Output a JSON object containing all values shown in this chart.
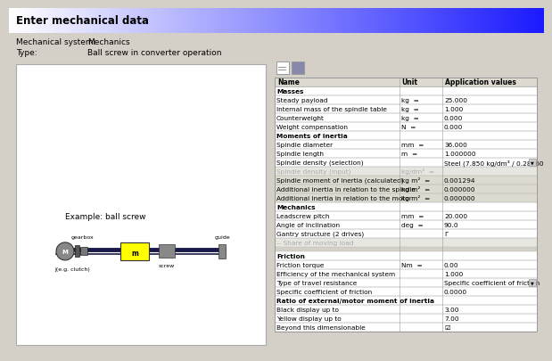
{
  "title": "Enter mechanical data",
  "bg_color": "#d4d0c8",
  "mechanical_system_label": "Mechanical system:",
  "mechanical_system_value": "Mechanics",
  "type_label": "Type:",
  "type_value": "Ball screw in converter operation",
  "diagram_label": "Example: ball screw",
  "table_headers": [
    "Name",
    "Unit",
    "Application values"
  ],
  "rows": [
    {
      "name": "Masses",
      "unit": "",
      "value": "",
      "bold": true,
      "group": true
    },
    {
      "name": "Steady payload",
      "unit": "kg  =",
      "value": "25.000",
      "bold": false
    },
    {
      "name": "Internal mass of the spindle table",
      "unit": "kg  =",
      "value": "1.000",
      "bold": false
    },
    {
      "name": "Counterweight",
      "unit": "kg  =",
      "value": "0.000",
      "bold": false
    },
    {
      "name": "Weight compensation",
      "unit": "N  =",
      "value": "0.000",
      "bold": false
    },
    {
      "name": "Moments of inertia",
      "unit": "",
      "value": "",
      "bold": true,
      "group": true
    },
    {
      "name": "Spindle diameter",
      "unit": "mm  =",
      "value": "36.000",
      "bold": false
    },
    {
      "name": "Spindle length",
      "unit": "m  =",
      "value": "1.000000",
      "bold": false
    },
    {
      "name": "Spindle density (selection)",
      "unit": "",
      "value": "Steel (7.850 kg/dm³ / 0.28360 l...",
      "bold": false,
      "dropdown": true
    },
    {
      "name": "Spindle density (input)",
      "unit": "kg/dm³  =",
      "value": "",
      "bold": false,
      "grayed": true
    },
    {
      "name": "Spindle moment of inertia (calculated)",
      "unit": "kg m²  =",
      "value": "0.001294",
      "bold": false,
      "shaded": true
    },
    {
      "name": "Additional inertia in relation to the spindle",
      "unit": "kg m²  =",
      "value": "0.000000",
      "bold": false,
      "shaded": true
    },
    {
      "name": "Additional inertia in relation to the motor",
      "unit": "kg m²  =",
      "value": "0.000000",
      "bold": false,
      "shaded": true
    },
    {
      "name": "Mechanics",
      "unit": "",
      "value": "",
      "bold": true,
      "group": true
    },
    {
      "name": "Leadscrew pitch",
      "unit": "mm  =",
      "value": "20.000",
      "bold": false
    },
    {
      "name": "Angle of inclination",
      "unit": "deg  =",
      "value": "90.0",
      "bold": false
    },
    {
      "name": "Gantry structure (2 drives)",
      "unit": "",
      "value": "Γ",
      "bold": false
    },
    {
      "name": "-- Share of moving load",
      "unit": "",
      "value": "",
      "bold": false,
      "grayed": true
    },
    {
      "name": "",
      "unit": "",
      "value": "",
      "bold": false,
      "spacer": true
    },
    {
      "name": "Friction",
      "unit": "",
      "value": "",
      "bold": true,
      "group": true
    },
    {
      "name": "Friction torque",
      "unit": "Nm  =",
      "value": "0.00",
      "bold": false
    },
    {
      "name": "Efficiency of the mechanical system",
      "unit": "",
      "value": "1.000",
      "bold": false
    },
    {
      "name": "Type of travel resistance",
      "unit": "",
      "value": "Specific coefficient of friction",
      "bold": false,
      "dropdown": true
    },
    {
      "name": "Specific coefficient of friction",
      "unit": "",
      "value": "0.0000",
      "bold": false
    },
    {
      "name": "Ratio of external/motor moment of inertia",
      "unit": "",
      "value": "",
      "bold": true,
      "group": true
    },
    {
      "name": "Black display up to",
      "unit": "",
      "value": "3.00",
      "bold": false
    },
    {
      "name": "Yellow display up to",
      "unit": "",
      "value": "7.00",
      "bold": false
    },
    {
      "name": "Beyond this dimensionable",
      "unit": "",
      "value": "☑",
      "bold": false
    }
  ]
}
